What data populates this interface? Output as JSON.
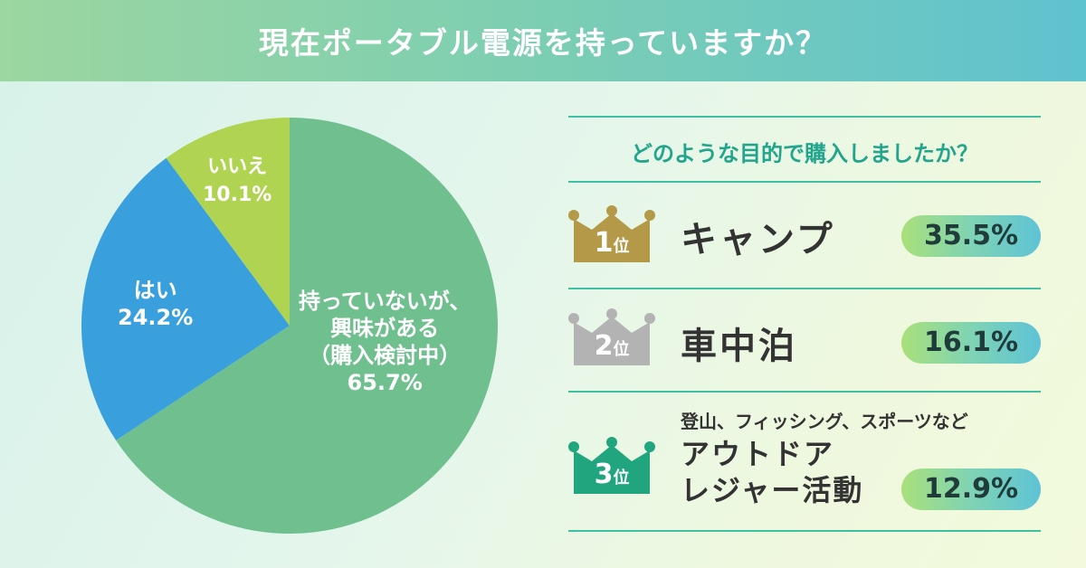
{
  "header": {
    "title": "現在ポータブル電源を持っていますか？"
  },
  "colors": {
    "no": "#70bf8f",
    "yes": "#3aa0dd",
    "none": "#b0d452",
    "accent": "#22a58c",
    "gold": "#b49a48",
    "silver": "#b3b3b3",
    "green": "#20a57e"
  },
  "chart_data": {
    "type": "pie",
    "categories": [
      "持っていないが、興味がある（購入検討中）",
      "はい",
      "いいえ"
    ],
    "values": [
      65.7,
      24.2,
      10.1
    ],
    "labels": {
      "no_line1": "持っていないが、",
      "no_line2": "興味がある",
      "no_line3": "（購入検討中）",
      "no_pct": "65.7%",
      "yes_line1": "はい",
      "yes_pct": "24.2%",
      "none_line1": "いいえ",
      "none_pct": "10.1%"
    }
  },
  "ranking": {
    "question": "どのような目的で購入しましたか？",
    "items": [
      {
        "rank": "1",
        "suffix": "位",
        "label": "キャンプ",
        "pct": "35.5%",
        "color": "#b49a48"
      },
      {
        "rank": "2",
        "suffix": "位",
        "label": "車中泊",
        "pct": "16.1%",
        "color": "#b3b3b3"
      },
      {
        "rank": "3",
        "suffix": "位",
        "sub": "登山、フィッシング、スポーツなど",
        "label_line1": "アウトドア",
        "label_line2": "レジャー活動",
        "pct": "12.9%",
        "color": "#20a57e"
      }
    ]
  }
}
